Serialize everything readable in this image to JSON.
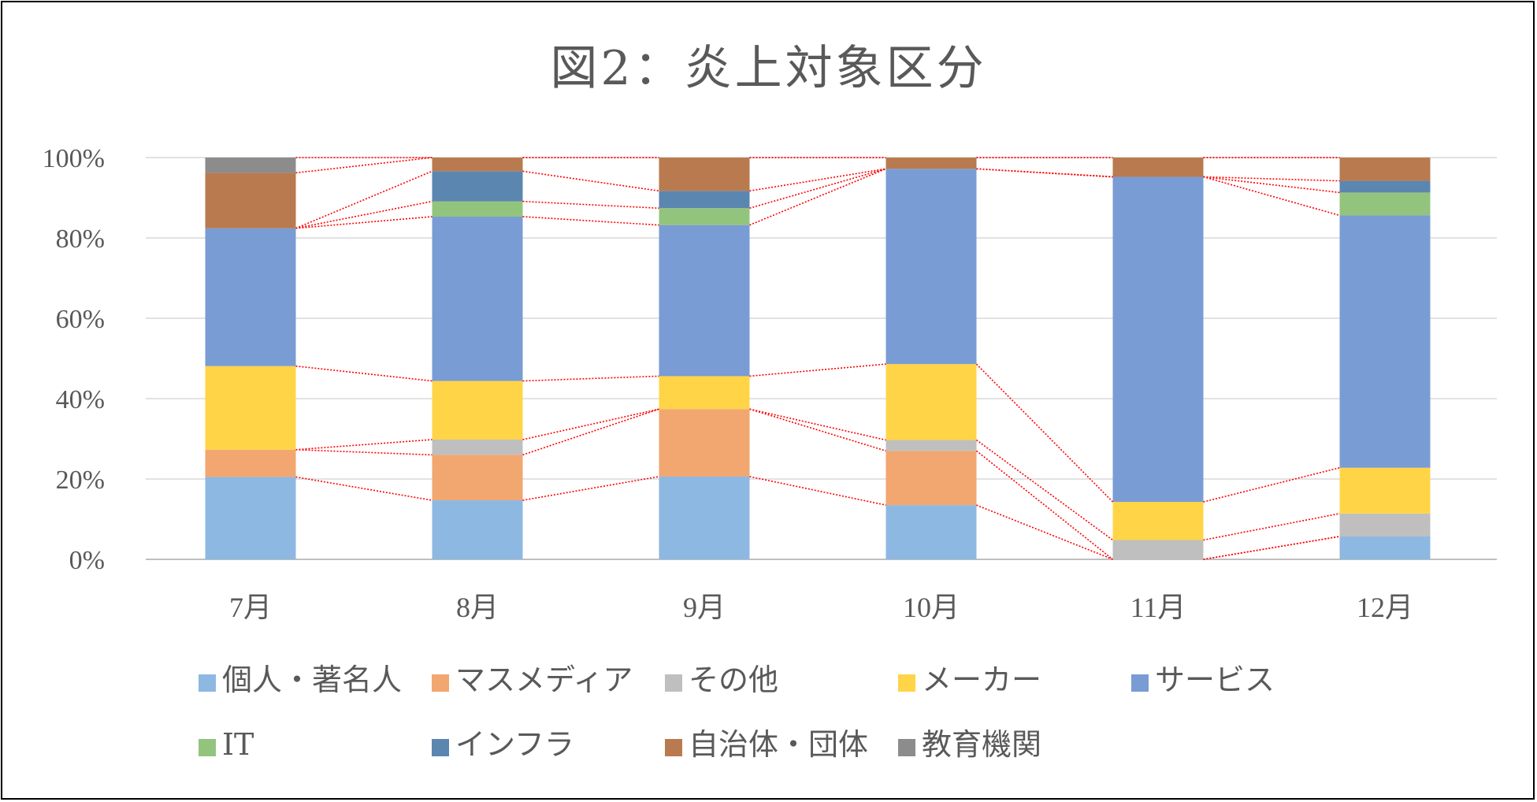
{
  "chart_data": {
    "type": "bar",
    "stacked": true,
    "percent_stacked": true,
    "title": "図2：炎上対象区分",
    "categories": [
      "7月",
      "8月",
      "9月",
      "10月",
      "11月",
      "12月"
    ],
    "y_ticks": [
      "0%",
      "20%",
      "40%",
      "60%",
      "80%",
      "100%"
    ],
    "ylim": [
      0,
      100
    ],
    "grid": true,
    "legend_position": "bottom",
    "series_lines": "red dotted lines connect stack boundaries between adjacent bars",
    "series": [
      {
        "name": "個人・著名人",
        "color": "#8DB8E2",
        "values": [
          20.5,
          14.7,
          20.6,
          13.5,
          0,
          5.7
        ]
      },
      {
        "name": "マスメディア",
        "color": "#F2A670",
        "values": [
          6.8,
          11.3,
          16.8,
          13.5,
          0,
          0
        ]
      },
      {
        "name": "その他",
        "color": "#BFBFBF",
        "values": [
          0,
          3.8,
          0,
          2.7,
          4.8,
          5.7
        ]
      },
      {
        "name": "メーカー",
        "color": "#FFD447",
        "values": [
          20.8,
          14.6,
          8.2,
          18.9,
          9.5,
          11.4
        ]
      },
      {
        "name": "サービス",
        "color": "#7A9CD4",
        "values": [
          34.3,
          40.9,
          37.6,
          48.6,
          80.9,
          62.8
        ]
      },
      {
        "name": "IT",
        "color": "#93C47D",
        "values": [
          0,
          3.8,
          4.2,
          0,
          0,
          5.7
        ]
      },
      {
        "name": "インフラ",
        "color": "#5B86B0",
        "values": [
          0,
          7.5,
          4.3,
          0,
          0,
          2.9
        ]
      },
      {
        "name": "自治体・団体",
        "color": "#B97A4F",
        "values": [
          13.8,
          3.4,
          8.3,
          2.8,
          4.8,
          5.8
        ]
      },
      {
        "name": "教育機関",
        "color": "#8C8C8C",
        "values": [
          3.8,
          0,
          0,
          0,
          0,
          0
        ]
      }
    ]
  }
}
